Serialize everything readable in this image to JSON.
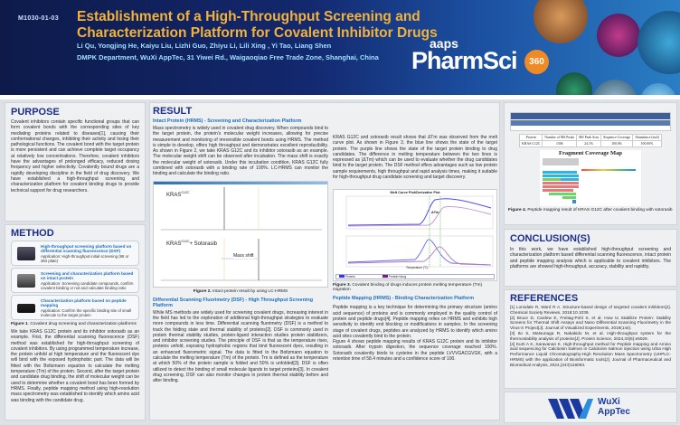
{
  "header": {
    "code": "M1030-01-03",
    "title": "Establishment of a High-Throughput Screening and Characterization Platform for Covalent Inhibitor Drugs",
    "authors": "Li Qu, Yongjing He, Kaiyu Liu, Lizhi Guo, Zhiyu Li, Lili Xing , Yi Tao, Liang Shen",
    "affiliation": "DMPK Department, WuXi AppTec, 31 Yiwei Rd., Waigaoqiao Free Trade Zone, Shanghai, China",
    "logo_aaps": "aaps",
    "logo_pharmsci": "PharmSci",
    "logo_360": "360"
  },
  "purpose": {
    "heading": "PURPOSE",
    "text": "Covalent inhibitors contain specific functional groups that can form covalent bonds with the corresponding sites of key mediating proteins related to diseases[1], causing their conformational changes, inhibiting their activity and losing their pathological functions. The covalent bond with the target protein is more persistent and can achieve complete target occupancy at relatively low concentrations. Therefore, covalent inhibitors have the advantages of prolonged efficacy, reduced dosing frequency and higher selectivity. Covalently bound drugs are a rapidly developing discipline in the field of drug discovery. We have established a high-throughput screening and characterization platform for covalent binding drugs to provide technical support for drug researchers."
  },
  "method": {
    "heading": "METHOD",
    "items": [
      {
        "title": "High-throughput screening platform based on differential scanning fluorescence (DSF)",
        "app": "Application: High-throughput initial screening (96 or 384 plate)"
      },
      {
        "title": "Screening and characterization platform based on intact protein",
        "app": "Application: Screening candidate compounds, confirm covalent binding or not and calculate binding ratio"
      },
      {
        "title": "Characterization platform based on peptide mapping",
        "app": "Application: Confirm the specific binding site of small molecule to the target protein"
      }
    ],
    "fig_label": "Figure 1",
    "fig_caption": ". Covalent drug screening and characterization platforms",
    "text": "We take KRAS G12C protein and its inhibitor sotorasib as an example. First, the differential scanning fluorescence (DSF) method was established for high-throughput screening of covalent inhibitors. By using programmed temperature increase, the protein unfold at high temperature and the fluorescent dye will bind with the exposed hydrophobic part. The data will be fitted with the Boltzmann equation to calculate the melting temperature (Tm) of the protein. Second, after the target protein and candidate drug binding, the shift of molecular weight can be used to determine whether a covalent bond has been formed by HRMS. Finally, peptide mapping method using high-resolution mass spectrometry was established to identify which amino acid was binding with the candidate drug."
  },
  "result": {
    "heading": "RESULT",
    "intact_sub": "Intact Protein (HRMS) - Screening and Characterization Platform",
    "intact_text": "Mass spectrometry is widely used in covalent drug discovery. When compounds bind to the target protein, the protein's molecular weight increases, allowing for precise measurement and monitoring of irreversible covalent bonds using HRMS. The method is simple to develop, offers high throughput and demonstrates excellent reproducibility. As shown in Figure 2, we take KRAS G12C and its inhibitor sotorasib as an example. The molecular weight shift can be observed after incubation. The mass shift is exactly the molecular weight of sotorasib. Under this incubation condition, KRAS G12C fully combined with sotorasib with a binding rate of 100%. LC-HRMS can monitor the binding and calculate the binding ratio.",
    "fig2_top_label": "KRAS",
    "fig2_top_sup": "G12C",
    "fig2_bottom_label": "KRAS",
    "fig2_bottom_sup": "G12C",
    "fig2_bottom_suffix": "+ Sotorasib",
    "fig2_mass_shift": "Mass shift",
    "fig2_label": "Figure 2.",
    "fig2_caption": " Intact protein result by using LC-HRMS",
    "dsf_sub": "Differential Scanning Fluorimetry (DSF) - High Throughput Screening Platform",
    "dsf_text": "While MS methods are widely used for screening covalent drugs, increasing interest in the field has led to the exploration of additional high-throughput strategies to evaluate more compounds in less time. Differential scanning fluorimetry (DSF) is a method to track the folding state and thermal stability of proteins[2]. DSF is commonly used in protein thermal stability studies, protein-ligand interaction studies protein stabilizers, and inhibitor screening studies. The principle of DSF is that as the temperature rises, proteins unfold, exposing hydrophobic regions that bind fluorescent dyes, resulting in an enhanced fluorometric signal. The data is fitted to the Boltzmann equation to calculate the melting temperature (Tm) of the protein. Tm is defined as the temperature at which 50% of the protein sample is folded and 50% is unfolded[3]. DSF is often utilized to detect the binding of small molecule ligands to target proteins[3]. In covalent drug screening, DSF can also monitor changes in protein thermal stability before and after binding.",
    "dsf_result_text": "KRAS G12C and sotorasib result shows that ΔTm was observed from the melt curve plot. As shown in Figure 3, the blue line shows the state of the target protein. The purple line shows the state of the target protein binding to drug candidates. The difference in melting temperature between the two lines is expressed as (ΔTm) which can be used to evaluate whether the drug candidates bind to the target protein. The DSF method offers advantages such as low protein sample requirements, high throughput and rapid analysis times, making it suitable for high-throughput drug candidate screening and target discovery.",
    "fig3_title": "Melt Curve Plot/Derivative Plot",
    "fig3_dtm": "ΔTm",
    "fig3_legend": [
      "Protein",
      "Protein+drug"
    ],
    "fig3_xlabel": "Temperature (°C)",
    "fig3_label": "Figure 3.",
    "fig3_caption": " Covalent binding of drugs induces protein melting temperature (Tm) migration",
    "pep_sub": "Peptide Mapping (HRMS) - Binding Characterization Platform",
    "pep_text1": "Peptide mapping is a key technique for determining the primary structure (amino acid sequence) of proteins and is commonly employed in the quality control of protein and peptide drugs[4]. Peptide mapping relies on HRMS and exhibits high sensitivity to identify end blocking or modifications in samples. In the screening stage of covalent drugs, peptides are analyzed by HRMS to identify which amino acid sites covalently bind to the protein.",
    "pep_text2": "Figure 4 shows peptide mapping results of KRAS G12C protein and its inhibitor sotorasib. After trypsin digestion, the sequence coverage reached 100%. Sotorasib covalently binds to cysteine in the peptide LVVVGACGVGK, with a retention time of 58.4 minutes and a confidence score of 100."
  },
  "fig4": {
    "table_headers": [
      "Protein",
      "Number of MS Peaks",
      "MS Peak Area",
      "Sequence Coverage",
      "Abundance (mol)"
    ],
    "table_row": [
      "KRAS G12C",
      "1506",
      "24.1%",
      "100.0%",
      "100.00%"
    ],
    "map_title": "Fragment Coverage Map",
    "label": "Figure 4.",
    "caption": " Peptide mapping result of KRAS G12C after covalent binding with sotorasib"
  },
  "conclusion": {
    "heading": "CONCLUSION(S)",
    "text": "In this work, we have established high-throughput screening and characterization platform based differential scanning fluorescence, intact protein and peptide mapping analysis which is applicable to covalent inhibitors. The platforms are showed high-throughput, accuracy, stability and rapidity."
  },
  "references": {
    "heading": "REFERENCES",
    "items": [
      "[1] Lonsdale R, Ward R A. Structure-based design of targeted covalent inhibitors[J]. Chemical Society Reviews, 2018:10.1039.",
      "[2] Bruce D, Cardew E, Freitag-Pohl S, et al. How to Stabilize Protein: Stability Screens for Thermal Shift Assays and Nano Differential Scanning Fluorimetry in the Virus-X Project[J]. Journal of Visualized Experiments, 2019(144).",
      "[3] Ito S, Matsunaga R, Nakakido M, et al. High-throughput system for the thermostability analysis of proteins[J]. Protein Science, 2024,33(6):e5029.",
      "[4] Kurti A K, Saravanan K. High-throughput method for Peptide mapping and Amino acid sequencing for Calcitonin Salmon in Calcitonin Salmon injection using Ultra High Performance Liquid Chromatography-High Resolution Mass Spectrometry (UHPLC-HRMS) with the application of Bioinformatic tools[J]. Journal of Pharmaceutical and Biomedical Analysis, 2024,(243)116094."
    ]
  },
  "footer": {
    "logo_line1": "WuXi",
    "logo_line2": "AppTec"
  },
  "colors": {
    "navy": "#13286e",
    "title_orange": "#f3b23a",
    "heading_blue": "#1c2f8c",
    "sub_blue": "#1e6fc0",
    "protein_blue": "#4b4bf0",
    "drug_purple": "#b07ac0"
  }
}
